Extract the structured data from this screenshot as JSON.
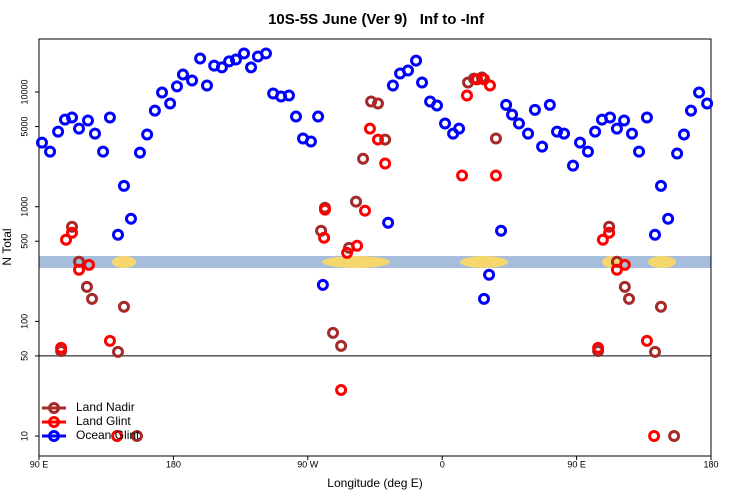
{
  "chart_data": {
    "type": "scatter",
    "title": "10S-5S June (Ver 9)   Inf to -Inf",
    "xlabel": "Longitude (deg E)",
    "ylabel": "N Total",
    "log_y": true,
    "hline": 50,
    "legend": "bottom-left",
    "xlim": [
      90,
      540
    ],
    "xticks": [
      {
        "value": 90,
        "label": "90 E"
      },
      180,
      {
        "value": 270,
        "label": "90 W"
      },
      {
        "value": 360,
        "label": "0"
      },
      {
        "value": 450,
        "label": "90 E"
      },
      {
        "value": 540,
        "label": "180"
      }
    ],
    "ylim": [
      6.7,
      29000
    ],
    "yticks": [
      10,
      50,
      100,
      500,
      1000,
      5000,
      10000
    ],
    "series": [
      {
        "name": "Land Nadir",
        "color": "#a52a2a",
        "x": [
          104.8,
          112.1,
          116.8,
          122.1,
          125.5,
          142.9,
          146.9,
          155.6,
          278.9,
          281.5,
          286.9,
          292.3,
          297.6,
          302.3,
          307,
          312.4,
          317,
          321.8,
          377.3,
          381.3,
          386.6,
          396,
          464.4,
          471.8,
          477,
          482.3,
          485.1,
          502.5,
          506.5,
          515.3
        ],
        "values": [
          55.2,
          668,
          331,
          200,
          157,
          54.2,
          134,
          10,
          617,
          979,
          79.4,
          61.1,
          438,
          1107,
          2620,
          8260,
          7940,
          3850,
          12100,
          13100,
          13400,
          3930,
          55.2,
          668,
          331,
          200,
          157,
          54.2,
          134,
          10
        ]
      },
      {
        "name": "Land Glint",
        "color": "#ff0000",
        "x": [
          104.8,
          108.1,
          112.1,
          116.8,
          123.5,
          137.5,
          142.3,
          280.9,
          281.5,
          292.3,
          296.3,
          303,
          308.3,
          311.6,
          317,
          321.8,
          373.3,
          376.6,
          383.3,
          388,
          392,
          396,
          464.4,
          467.6,
          471.8,
          477,
          482.3,
          497.1,
          501.9
        ],
        "values": [
          58.8,
          515,
          593,
          282,
          311,
          67.6,
          10,
          536,
          942,
          25.2,
          396,
          456,
          923,
          4800,
          3850,
          2380,
          1870,
          9320,
          12900,
          12900,
          11400,
          1870,
          58.8,
          515,
          593,
          282,
          311,
          67.6,
          10
        ]
      },
      {
        "name": "Ocean Glint",
        "color": "#0000ff",
        "x": [
          92,
          97.4,
          102.8,
          107.4,
          112.1,
          116.8,
          122.8,
          127.5,
          132.9,
          137.5,
          142.9,
          146.9,
          151.6,
          157.6,
          162.4,
          167.6,
          172.4,
          177.8,
          182.4,
          186.4,
          192.5,
          197.9,
          202.5,
          207.3,
          212.5,
          217.3,
          221.9,
          227.3,
          232,
          236.6,
          242,
          246.8,
          252.1,
          257.4,
          262.1,
          266.8,
          272.1,
          276.9,
          280.1,
          323.8,
          327,
          331.8,
          337.1,
          342.5,
          346.5,
          351.9,
          356.5,
          361.9,
          367.3,
          371.3,
          388,
          391.4,
          399.4,
          402.8,
          406.8,
          411.4,
          417.5,
          422.1,
          426.9,
          432.1,
          436.9,
          441.6,
          447.6,
          452.3,
          457.6,
          462.4,
          467,
          472.4,
          477,
          481.8,
          487.1,
          491.8,
          497.1,
          502.5,
          506.5,
          511.3,
          517.3,
          521.9,
          526.6,
          532,
          537.4
        ],
        "values": [
          3620,
          3020,
          4520,
          5750,
          5990,
          4800,
          5640,
          4340,
          3020,
          5990,
          569,
          1520,
          785,
          2960,
          4260,
          6890,
          9910,
          7940,
          11200,
          14200,
          12600,
          19600,
          11400,
          17000,
          16400,
          18500,
          19200,
          21700,
          16400,
          20400,
          21700,
          9710,
          9140,
          9320,
          6110,
          3930,
          3700,
          6110,
          208,
          725,
          11400,
          14500,
          15400,
          18800,
          12100,
          8260,
          7630,
          5310,
          4340,
          4800,
          157,
          255,
          617,
          7720,
          6350,
          5310,
          4340,
          6990,
          3340,
          7720,
          4520,
          4340,
          2280,
          3620,
          3020,
          4520,
          5750,
          5990,
          4800,
          5640,
          4340,
          3020,
          5990,
          569,
          1520,
          785,
          2910,
          4260,
          6890,
          9910,
          7940
        ]
      }
    ]
  }
}
